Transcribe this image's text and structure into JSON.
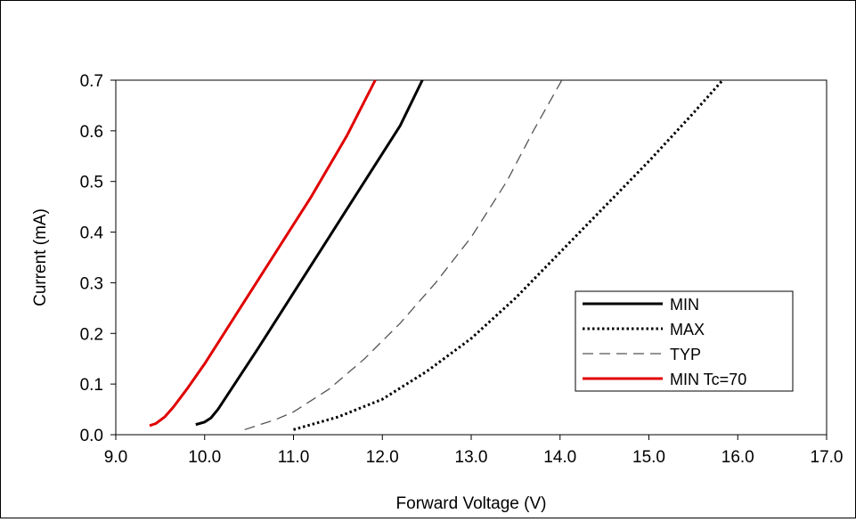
{
  "chart_data": {
    "type": "line",
    "title": "",
    "xlabel": "Forward Voltage (V)",
    "ylabel": "Current  (mA)",
    "xlim": [
      9.0,
      17.0
    ],
    "ylim": [
      0.0,
      0.7
    ],
    "x_ticks": [
      "9.0",
      "10.0",
      "11.0",
      "12.0",
      "13.0",
      "14.0",
      "15.0",
      "16.0",
      "17.0"
    ],
    "y_ticks": [
      "0.0",
      "0.1",
      "0.2",
      "0.3",
      "0.4",
      "0.5",
      "0.6",
      "0.7"
    ],
    "grid": false,
    "legend_position": "bottom-right",
    "series": [
      {
        "name": "MIN",
        "style": "solid-thick",
        "color": "#000000",
        "x": [
          9.9,
          10.0,
          10.07,
          10.15,
          10.3,
          10.6,
          11.0,
          11.4,
          11.8,
          12.2,
          12.45
        ],
        "y": [
          0.02,
          0.025,
          0.033,
          0.05,
          0.09,
          0.17,
          0.28,
          0.39,
          0.5,
          0.61,
          0.7
        ]
      },
      {
        "name": "MAX",
        "style": "dotted",
        "color": "#000000",
        "x": [
          11.0,
          11.5,
          12.0,
          12.5,
          13.0,
          13.5,
          14.0,
          14.5,
          15.0,
          15.5,
          15.83
        ],
        "y": [
          0.01,
          0.035,
          0.07,
          0.125,
          0.19,
          0.27,
          0.36,
          0.45,
          0.54,
          0.635,
          0.7
        ]
      },
      {
        "name": "TYP",
        "style": "dashed",
        "color": "#555555",
        "x": [
          10.45,
          10.8,
          11.0,
          11.4,
          11.8,
          12.2,
          12.6,
          13.0,
          13.4,
          13.7,
          14.02
        ],
        "y": [
          0.01,
          0.03,
          0.045,
          0.09,
          0.15,
          0.22,
          0.3,
          0.39,
          0.5,
          0.6,
          0.7
        ]
      },
      {
        "name": "MIN Tc=70",
        "style": "solid-thick",
        "color": "#e00000",
        "x": [
          9.38,
          9.45,
          9.55,
          9.65,
          9.8,
          10.0,
          10.4,
          10.8,
          11.2,
          11.6,
          11.92
        ],
        "y": [
          0.018,
          0.022,
          0.035,
          0.055,
          0.09,
          0.14,
          0.25,
          0.36,
          0.47,
          0.59,
          0.7
        ]
      }
    ]
  }
}
